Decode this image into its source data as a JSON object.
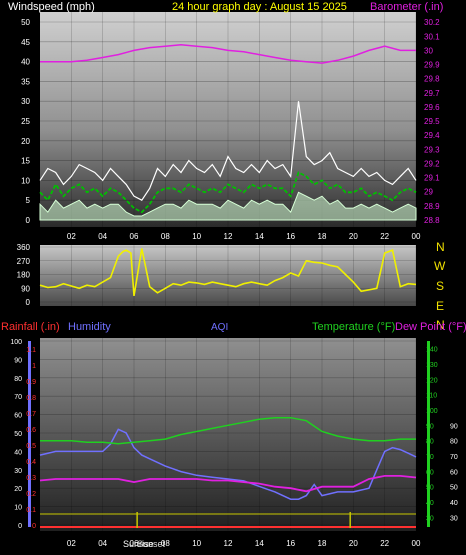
{
  "colors": {
    "background": "#000000",
    "wind_light": "#d6ffd6",
    "wind_mid": "#00c000",
    "wind_gust": "#ffffff",
    "barometer": "#e020e0",
    "direction": "#f0f000",
    "compass": "#f0e000",
    "rainfall": "#ff3030",
    "humidity": "#7070ff",
    "temperature": "#20d020",
    "dewpoint": "#e020e0",
    "aqi": "#7070ff",
    "sun": "#c8c800"
  },
  "header": {
    "wind_label": "Windspeed (mph)",
    "title": "24 hour graph day : August 15 2025",
    "baro_label": "Barometer (.in)"
  },
  "compass": [
    "N",
    "W",
    "S",
    "E",
    "N"
  ],
  "bottom_labels": {
    "rain": "Rainfall (.in)",
    "humidity": "Humidity",
    "aqi": "AQI",
    "temperature": "Temperature (°F)",
    "dewpoint": "Dew Point (°F)"
  },
  "sun_labels": {
    "sunrise": "Sunrise",
    "sunset": "Sunset"
  },
  "chart_data": [
    {
      "type": "line",
      "title": "24 hour graph day : August 15 2025",
      "x_ticks": [
        "02",
        "04",
        "06",
        "08",
        "10",
        "12",
        "14",
        "16",
        "18",
        "20",
        "22",
        "00"
      ],
      "ylabel": "Windspeed (mph)",
      "ylim": [
        0,
        50
      ],
      "y_ticks": [
        0,
        5,
        10,
        15,
        20,
        25,
        30,
        35,
        40,
        45,
        50
      ],
      "y2label": "Barometer (.in)",
      "y2lim": [
        28.8,
        30.3
      ],
      "y2_ticks": [
        28.8,
        28.9,
        29,
        29.1,
        29.2,
        29.3,
        29.4,
        29.5,
        29.6,
        29.7,
        29.8,
        29.9,
        30,
        30.1,
        30.2
      ],
      "series": [
        {
          "name": "Barometer (.in)",
          "axis": "right",
          "x": [
            0,
            1,
            2,
            3,
            4,
            5,
            6,
            7,
            8,
            9,
            10,
            11,
            12,
            13,
            14,
            15,
            16,
            17,
            18,
            19,
            20,
            21,
            22,
            23,
            24
          ],
          "values": [
            29.92,
            29.92,
            29.92,
            29.93,
            29.95,
            29.97,
            30.0,
            30.02,
            30.03,
            30.04,
            30.03,
            30.02,
            30.0,
            29.99,
            29.97,
            29.95,
            29.93,
            29.92,
            29.91,
            29.93,
            29.96,
            30.0,
            30.03,
            30.0,
            30.0
          ]
        },
        {
          "name": "Wind gust",
          "axis": "left",
          "x": [
            0,
            0.5,
            1,
            1.5,
            2,
            2.5,
            3,
            3.5,
            4,
            4.5,
            5,
            5.5,
            6,
            6.5,
            7,
            7.5,
            8,
            8.5,
            9,
            9.5,
            10,
            10.5,
            11,
            11.5,
            12,
            12.5,
            13,
            13.5,
            14,
            14.5,
            15,
            15.5,
            16,
            16.5,
            17,
            17.5,
            18,
            18.5,
            19,
            19.5,
            20,
            20.5,
            21,
            21.5,
            22,
            22.5,
            23,
            23.5,
            24
          ],
          "values": [
            10,
            13,
            12,
            9,
            11,
            14,
            13,
            12,
            10,
            13,
            11,
            9,
            6,
            5,
            8,
            13,
            11,
            14,
            12,
            15,
            13,
            12,
            14,
            11,
            16,
            13,
            12,
            14,
            12,
            15,
            13,
            14,
            11,
            30,
            16,
            14,
            15,
            17,
            13,
            12,
            11,
            13,
            11,
            12,
            10,
            9,
            11,
            13,
            10
          ]
        },
        {
          "name": "Wind average",
          "axis": "left",
          "x": [
            0,
            0.5,
            1,
            1.5,
            2,
            2.5,
            3,
            3.5,
            4,
            4.5,
            5,
            5.5,
            6,
            6.5,
            7,
            7.5,
            8,
            8.5,
            9,
            9.5,
            10,
            10.5,
            11,
            11.5,
            12,
            12.5,
            13,
            13.5,
            14,
            14.5,
            15,
            15.5,
            16,
            16.5,
            17,
            17.5,
            18,
            18.5,
            19,
            19.5,
            20,
            20.5,
            21,
            21.5,
            22,
            22.5,
            23,
            23.5,
            24
          ],
          "values": [
            7,
            5,
            9,
            6,
            8,
            9,
            7,
            8,
            6,
            8,
            7,
            5,
            3,
            2,
            4,
            7,
            8,
            8,
            7,
            9,
            8,
            7,
            8,
            7,
            9,
            8,
            7,
            9,
            8,
            9,
            8,
            8,
            6,
            12,
            11,
            9,
            10,
            8,
            9,
            7,
            7,
            8,
            6,
            7,
            6,
            5,
            7,
            8,
            7
          ]
        },
        {
          "name": "Wind speed",
          "axis": "left",
          "x": [
            0,
            0.5,
            1,
            1.5,
            2,
            2.5,
            3,
            3.5,
            4,
            4.5,
            5,
            5.5,
            6,
            6.5,
            7,
            7.5,
            8,
            8.5,
            9,
            9.5,
            10,
            10.5,
            11,
            11.5,
            12,
            12.5,
            13,
            13.5,
            14,
            14.5,
            15,
            15.5,
            16,
            16.5,
            17,
            17.5,
            18,
            18.5,
            19,
            19.5,
            20,
            20.5,
            21,
            21.5,
            22,
            22.5,
            23,
            23.5,
            24
          ],
          "values": [
            4,
            2,
            5,
            3,
            4,
            5,
            3,
            4,
            3,
            4,
            4,
            2,
            1,
            1,
            2,
            3,
            4,
            4,
            3,
            5,
            4,
            4,
            4,
            3,
            5,
            4,
            3,
            5,
            4,
            5,
            4,
            4,
            2,
            7,
            6,
            5,
            6,
            4,
            5,
            3,
            3,
            4,
            3,
            4,
            3,
            2,
            3,
            4,
            3
          ]
        }
      ]
    },
    {
      "type": "line",
      "ylabel": "Wind direction",
      "ylim": [
        0,
        360
      ],
      "y_ticks": [
        0,
        90,
        180,
        270,
        360
      ],
      "x_ticks": [
        "02",
        "04",
        "06",
        "08",
        "10",
        "12",
        "14",
        "16",
        "18",
        "20",
        "22",
        "00"
      ],
      "series": [
        {
          "name": "Wind direction",
          "x": [
            0,
            0.5,
            1,
            1.5,
            2,
            2.5,
            3,
            3.5,
            4,
            4.5,
            5,
            5.3,
            5.5,
            5.8,
            6,
            6.5,
            7,
            7.5,
            8,
            8.5,
            9,
            9.5,
            10,
            10.5,
            11,
            11.5,
            12,
            12.5,
            13,
            13.5,
            14,
            14.5,
            15,
            15.5,
            16,
            16.5,
            17,
            17.5,
            18,
            18.5,
            19,
            19.5,
            20,
            20.5,
            21,
            21.5,
            22,
            22.5,
            23,
            23.5,
            24
          ],
          "values": [
            110,
            95,
            100,
            120,
            105,
            90,
            110,
            100,
            130,
            160,
            300,
            330,
            340,
            320,
            40,
            350,
            100,
            60,
            90,
            120,
            110,
            130,
            125,
            115,
            130,
            120,
            110,
            100,
            120,
            130,
            120,
            110,
            140,
            160,
            190,
            170,
            270,
            260,
            255,
            240,
            230,
            180,
            130,
            70,
            80,
            90,
            320,
            340,
            100,
            120,
            115
          ]
        }
      ]
    },
    {
      "type": "line",
      "x_ticks": [
        "02",
        "04",
        "06",
        "08",
        "10",
        "12",
        "14",
        "16",
        "18",
        "20",
        "22",
        "00"
      ],
      "y_ticks_rain": [
        0,
        0.1,
        0.2,
        0.3,
        0.4,
        0.5,
        0.6,
        0.7,
        0.8,
        0.9,
        1,
        1.1
      ],
      "y_ticks_humidity": [
        0,
        10,
        20,
        30,
        40,
        50,
        60,
        70,
        80,
        90,
        100
      ],
      "y_ticks_temp": [
        30,
        40,
        50,
        60,
        70,
        80,
        90,
        100,
        110,
        120,
        130,
        140
      ],
      "y_ticks_dewpoint": [
        30,
        40,
        50,
        60,
        70,
        80,
        90
      ],
      "ylim_humidity": [
        0,
        100
      ],
      "ylim_temp": [
        25,
        145
      ],
      "series": [
        {
          "name": "Rainfall (.in)",
          "axis": "rain",
          "x": [
            0,
            24
          ],
          "values": [
            0,
            0
          ]
        },
        {
          "name": "Humidity",
          "axis": "humidity",
          "x": [
            0,
            1,
            2,
            3,
            4,
            4.5,
            5,
            5.5,
            6,
            6.5,
            7,
            8,
            9,
            10,
            11,
            12,
            13,
            14,
            15,
            15.5,
            16,
            16.5,
            17,
            17.5,
            18,
            19,
            20,
            21,
            21.5,
            22,
            22.5,
            23,
            23.5,
            24
          ],
          "values": [
            38,
            40,
            40,
            40,
            40,
            44,
            52,
            50,
            42,
            38,
            36,
            32,
            29,
            27,
            26,
            25,
            24,
            21,
            18,
            16,
            14,
            14,
            16,
            22,
            16,
            18,
            18,
            20,
            30,
            40,
            42,
            41,
            39,
            37
          ]
        },
        {
          "name": "Temperature (°F)",
          "axis": "temp",
          "x": [
            0,
            1,
            2,
            3,
            4,
            5,
            6,
            7,
            8,
            9,
            10,
            11,
            12,
            13,
            14,
            15,
            16,
            17,
            18,
            19,
            20,
            21,
            22,
            23,
            24
          ],
          "values": [
            80,
            80,
            80,
            79,
            79,
            78,
            79,
            80,
            81,
            84,
            86,
            88,
            90,
            92,
            94,
            95,
            95,
            93,
            86,
            83,
            81,
            80,
            80,
            81,
            81
          ]
        },
        {
          "name": "Dew Point (°F)",
          "axis": "dewpoint",
          "x": [
            0,
            1,
            2,
            3,
            4,
            5,
            6,
            7,
            8,
            9,
            10,
            11,
            12,
            13,
            14,
            15,
            16,
            17,
            18,
            19,
            20,
            21,
            22,
            23,
            24
          ],
          "values": [
            54,
            55,
            55,
            55,
            55,
            55,
            53,
            55,
            55,
            55,
            55,
            54,
            54,
            53,
            52,
            50,
            49,
            47,
            50,
            50,
            50,
            55,
            57,
            57,
            56
          ]
        }
      ]
    }
  ]
}
